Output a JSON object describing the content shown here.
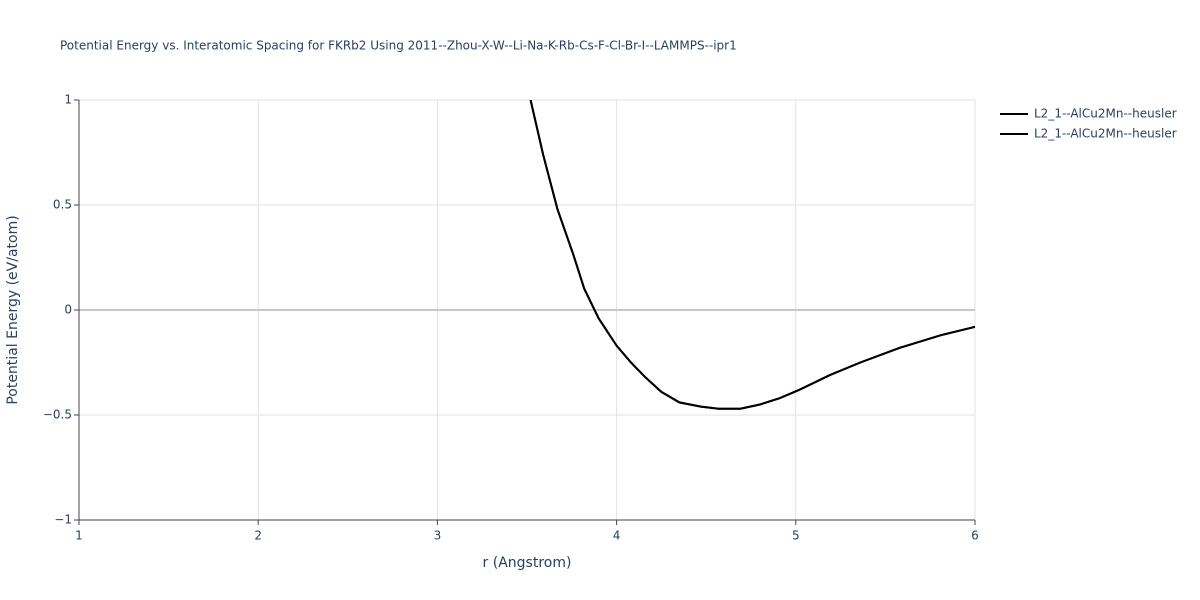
{
  "chart_data": {
    "type": "line",
    "title": "Potential Energy vs. Interatomic Spacing for FKRb2 Using 2011--Zhou-X-W--Li-Na-K-Rb-Cs-F-Cl-Br-I--LAMMPS--ipr1",
    "x_label": "r (Angstrom)",
    "y_label": "Potential Energy (eV/atom)",
    "x": [
      3.52,
      3.59,
      3.67,
      3.76,
      3.82,
      3.9,
      4.0,
      4.08,
      4.16,
      4.25,
      4.35,
      4.47,
      4.57,
      4.69,
      4.8,
      4.91,
      5.02,
      5.19,
      5.36,
      5.58,
      5.81,
      6.0
    ],
    "series": [
      {
        "name": "L2_1--AlCu2Mn--heusler",
        "color": "#000000",
        "values": [
          1.0,
          0.74,
          0.48,
          0.26,
          0.1,
          -0.04,
          -0.17,
          -0.25,
          -0.32,
          -0.39,
          -0.44,
          -0.46,
          -0.47,
          -0.47,
          -0.45,
          -0.42,
          -0.38,
          -0.31,
          -0.25,
          -0.18,
          -0.12,
          -0.08
        ]
      },
      {
        "name": "L2_1--AlCu2Mn--heusler",
        "color": "#000000",
        "values": [
          1.0,
          0.74,
          0.48,
          0.26,
          0.1,
          -0.04,
          -0.17,
          -0.25,
          -0.32,
          -0.39,
          -0.44,
          -0.46,
          -0.47,
          -0.47,
          -0.45,
          -0.42,
          -0.38,
          -0.31,
          -0.25,
          -0.18,
          -0.12,
          -0.08
        ]
      }
    ],
    "xlim": [
      1,
      6
    ],
    "xticks": [
      1,
      2,
      3,
      4,
      5,
      6
    ],
    "ylim": [
      -1,
      1
    ],
    "yticks": [
      {
        "value": -1,
        "label": "−1"
      },
      {
        "value": -0.5,
        "label": "−0.5"
      },
      0,
      0.5,
      1
    ],
    "grid": true
  }
}
